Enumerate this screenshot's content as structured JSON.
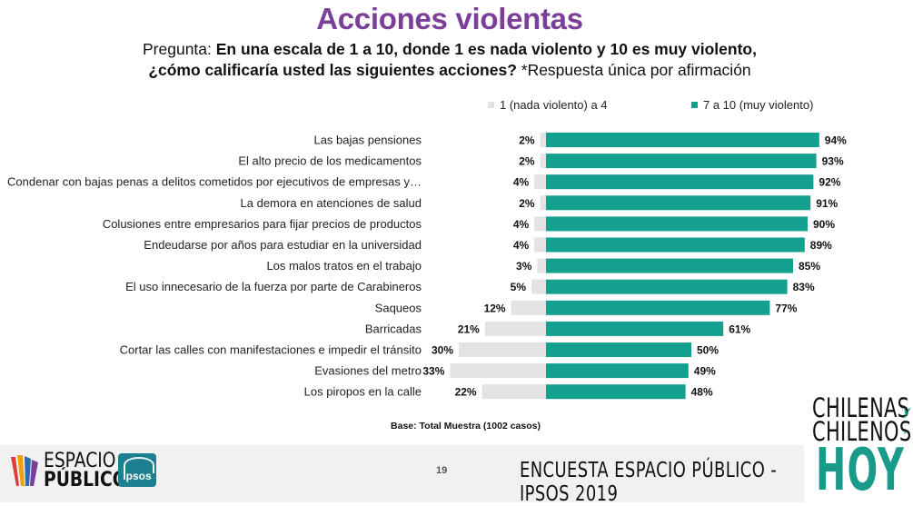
{
  "title": "Acciones violentas",
  "question": {
    "prefix": "Pregunta: ",
    "bold_line1": "En una escala de 1 a 10, donde 1 es nada violento y 10 es muy violento,",
    "bold_line2": "¿cómo calificaría usted las siguientes acciones?",
    "suffix": " *Respuesta única por afirmación"
  },
  "legend": {
    "low_label": "1 (nada violento) a 4",
    "high_label": "7 a 10 (muy violento)"
  },
  "colors": {
    "low": "#e3e3e3",
    "high": "#13a08f",
    "title": "#7b3f9a"
  },
  "chart_data": {
    "type": "bar",
    "orientation": "horizontal",
    "layout": "diverging",
    "categories": [
      "Las bajas pensiones",
      "El alto precio de los medicamentos",
      "Condenar con bajas penas a delitos cometidos por ejecutivos de empresas y…",
      "La demora en atenciones de salud",
      "Colusiones entre empresarios para fijar precios de productos",
      "Endeudarse por años para estudiar en la universidad",
      "Los malos tratos en el trabajo",
      "El uso innecesario de la fuerza por parte de Carabineros",
      "Saqueos",
      "Barricadas",
      "Cortar las calles con manifestaciones e impedir el tránsito",
      "Evasiones del metro",
      "Los piropos en la calle"
    ],
    "series": [
      {
        "name": "1 (nada violento) a 4",
        "values": [
          2,
          2,
          4,
          2,
          4,
          4,
          3,
          5,
          12,
          21,
          30,
          33,
          22
        ]
      },
      {
        "name": "7 a 10 (muy violento)",
        "values": [
          94,
          93,
          92,
          91,
          90,
          89,
          85,
          83,
          77,
          61,
          50,
          49,
          48
        ]
      }
    ],
    "value_suffix": "%",
    "grid": false,
    "legend_position": "top"
  },
  "base_note": "Base: Total Muestra (1002 casos)",
  "footer": {
    "page_number": "19",
    "survey_title": "ENCUESTA ESPACIO PÚBLICO - IPSOS 2019",
    "espacio_publico_line1": "ESPACIO",
    "espacio_publico_line2": "PÚBLICO",
    "ipsos_logo": "Ipsos",
    "chh_line1": "CHILENAS",
    "chh_y": "y",
    "chh_line2": "CHILENOS",
    "chh_hoy": "HOY"
  }
}
